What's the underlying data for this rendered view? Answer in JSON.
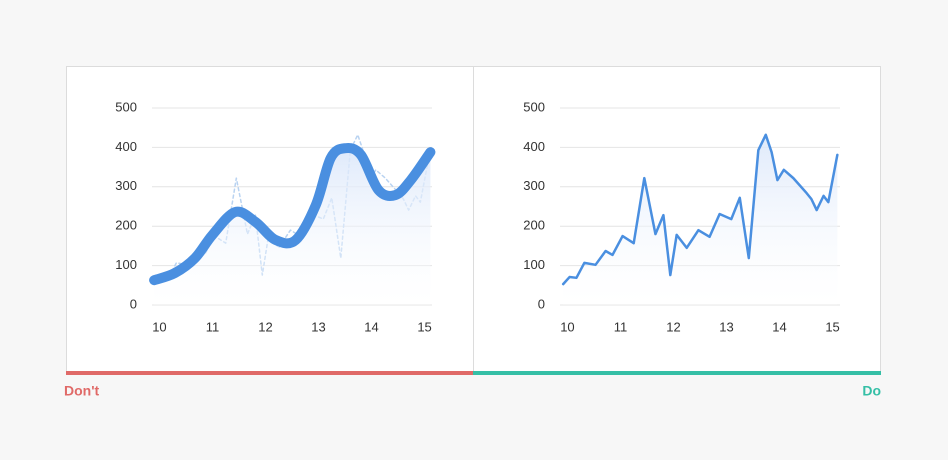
{
  "chart_data": [
    {
      "type": "line",
      "xlim": [
        9.86,
        15.14
      ],
      "ylim": [
        0,
        500
      ],
      "xticks": [
        10,
        11,
        12,
        13,
        14,
        15
      ],
      "yticks": [
        0,
        100,
        200,
        300,
        400,
        500
      ],
      "grid": true,
      "series": [
        {
          "color": "#b9d3f1",
          "style": "dashed",
          "x": [
            9.92,
            10.04,
            10.17,
            10.32,
            10.53,
            10.72,
            10.85,
            11.04,
            11.25,
            11.45,
            11.66,
            11.81,
            11.94,
            12.06,
            12.25,
            12.47,
            12.68,
            12.87,
            13.09,
            13.25,
            13.42,
            13.6,
            13.74,
            13.85,
            13.96,
            14.08,
            14.26,
            14.51,
            14.6,
            14.7,
            14.83,
            14.92,
            15.09
          ],
          "values": [
            53,
            71,
            69,
            107,
            102,
            137,
            127,
            175,
            157,
            322,
            180,
            228,
            76,
            178,
            145,
            190,
            173,
            231,
            218,
            272,
            119,
            393,
            432,
            388,
            317,
            343,
            322,
            284,
            269,
            241,
            277,
            261,
            381
          ]
        },
        {
          "color": "#4a8fe0",
          "style": "smooth",
          "fill": true,
          "x": [
            9.9,
            10.29,
            10.67,
            11.0,
            11.43,
            11.81,
            12.19,
            12.57,
            12.95,
            13.23,
            13.51,
            13.8,
            14.13,
            14.45,
            14.74,
            15.11
          ],
          "values": [
            63,
            81,
            119,
            178,
            236,
            211,
            165,
            165,
            254,
            373,
            398,
            381,
            292,
            279,
            317,
            388
          ]
        }
      ]
    },
    {
      "type": "line",
      "xlim": [
        9.86,
        15.14
      ],
      "ylim": [
        0,
        500
      ],
      "xticks": [
        10,
        11,
        12,
        13,
        14,
        15
      ],
      "yticks": [
        0,
        100,
        200,
        300,
        400,
        500
      ],
      "grid": true,
      "series": [
        {
          "color": "#4a8fe0",
          "style": "solid",
          "fill": true,
          "x": [
            9.92,
            10.04,
            10.17,
            10.32,
            10.53,
            10.72,
            10.85,
            11.04,
            11.25,
            11.45,
            11.66,
            11.81,
            11.94,
            12.06,
            12.25,
            12.47,
            12.68,
            12.87,
            13.09,
            13.25,
            13.42,
            13.6,
            13.74,
            13.85,
            13.96,
            14.08,
            14.26,
            14.51,
            14.6,
            14.7,
            14.83,
            14.92,
            15.09
          ],
          "values": [
            53,
            71,
            69,
            107,
            102,
            137,
            127,
            175,
            157,
            322,
            180,
            228,
            76,
            178,
            145,
            190,
            173,
            231,
            218,
            272,
            119,
            393,
            432,
            388,
            317,
            343,
            322,
            284,
            269,
            241,
            277,
            261,
            381
          ]
        }
      ]
    }
  ],
  "captions": [
    {
      "text": "Don't",
      "color": "#e06a68"
    },
    {
      "text": "Do",
      "color": "#35bfa6"
    }
  ]
}
